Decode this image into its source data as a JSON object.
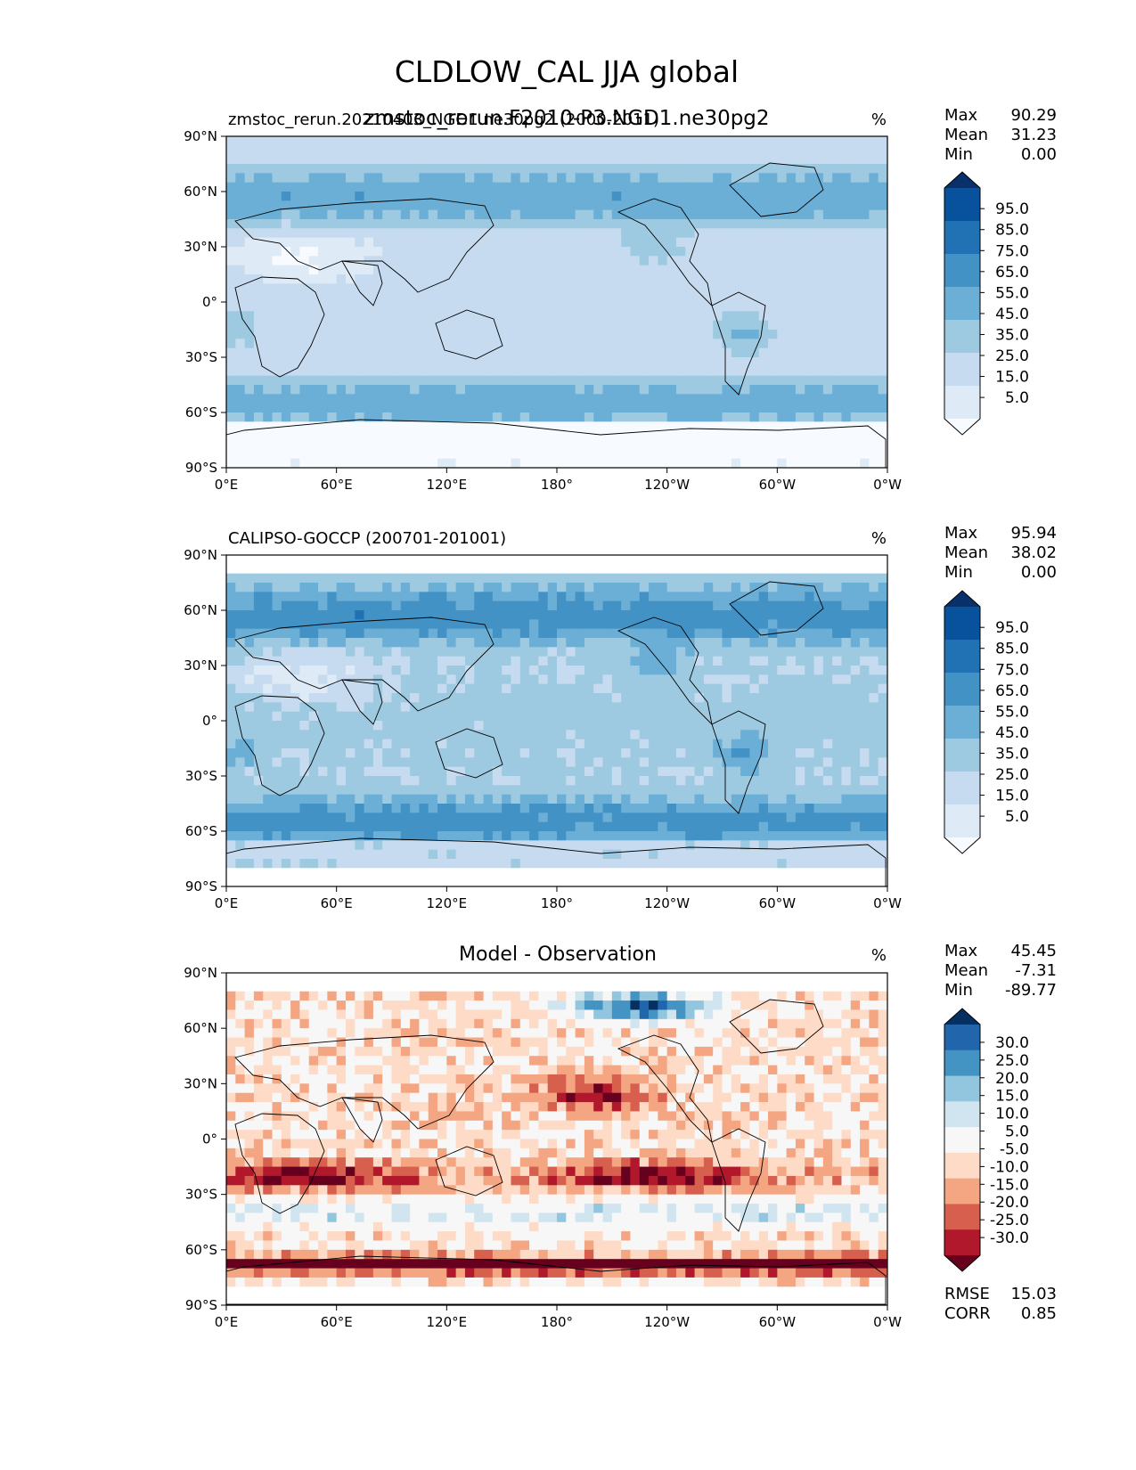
{
  "figure": {
    "title": "CLDLOW_CAL JJA global",
    "subtitle": "zmstoc_rerun.F2010-P3.NGD1.ne30pg2"
  },
  "colors": {
    "blues": [
      "#f7fbff",
      "#deebf7",
      "#c6dbef",
      "#9ecae1",
      "#6baed6",
      "#4292c6",
      "#2171b5",
      "#08519c",
      "#08306b"
    ],
    "diverging": [
      "#67001f",
      "#b2182b",
      "#d6604d",
      "#f4a582",
      "#fddbc7",
      "#f7f7f7",
      "#d1e5f0",
      "#92c5de",
      "#4393c3",
      "#2166ac",
      "#053061"
    ],
    "coastline": "#000000"
  },
  "chart_data": [
    {
      "type": "heatmap",
      "title": "zmstoc_rerun.20210403_NGD1.ne30pg2 (2000-2011)",
      "units": "%",
      "stats": {
        "max_label": "Max",
        "max": "90.29",
        "mean_label": "Mean",
        "mean": "31.23",
        "min_label": "Min",
        "min": "0.00"
      },
      "colorbar_ticks": [
        "95.0",
        "85.0",
        "75.0",
        "65.0",
        "55.0",
        "45.0",
        "35.0",
        "25.0",
        "15.0",
        "5.0"
      ],
      "x_ticks": [
        "0°E",
        "60°E",
        "120°E",
        "180°",
        "120°W",
        "60°W",
        "0°W"
      ],
      "y_ticks": [
        "90°N",
        "60°N",
        "30°N",
        "0°",
        "30°S",
        "60°S",
        "90°S"
      ],
      "value_range": [
        0,
        100
      ],
      "lat_range": [
        -90,
        90
      ]
    },
    {
      "type": "heatmap",
      "title": "CALIPSO-GOCCP (200701-201001)",
      "units": "%",
      "stats": {
        "max_label": "Max",
        "max": "95.94",
        "mean_label": "Mean",
        "mean": "38.02",
        "min_label": "Min",
        "min": "0.00"
      },
      "colorbar_ticks": [
        "95.0",
        "85.0",
        "75.0",
        "65.0",
        "55.0",
        "45.0",
        "35.0",
        "25.0",
        "15.0",
        "5.0"
      ],
      "x_ticks": [
        "0°E",
        "60°E",
        "120°E",
        "180°",
        "120°W",
        "60°W",
        "0°W"
      ],
      "y_ticks": [
        "90°N",
        "60°N",
        "30°N",
        "0°",
        "30°S",
        "60°S",
        "90°S"
      ],
      "value_range": [
        0,
        100
      ],
      "lat_range": [
        -82,
        82
      ]
    },
    {
      "type": "heatmap",
      "title": "Model - Observation",
      "units": "%",
      "stats": {
        "max_label": "Max",
        "max": "45.45",
        "mean_label": "Mean",
        "mean": "-7.31",
        "min_label": "Min",
        "min": "-89.77"
      },
      "colorbar_ticks": [
        "30.0",
        "25.0",
        "20.0",
        "15.0",
        "10.0",
        "5.0",
        "-5.0",
        "-10.0",
        "-15.0",
        "-20.0",
        "-25.0",
        "-30.0"
      ],
      "x_ticks": [
        "0°E",
        "60°E",
        "120°E",
        "180°",
        "120°W",
        "60°W",
        "0°W"
      ],
      "y_ticks": [
        "90°N",
        "60°N",
        "30°N",
        "0°",
        "30°S",
        "60°S",
        "90°S"
      ],
      "value_range": [
        -35,
        35
      ],
      "lat_range": [
        -82,
        82
      ],
      "extra_stats": {
        "rmse_label": "RMSE",
        "rmse": "15.03",
        "corr_label": "CORR",
        "corr": "0.85"
      }
    }
  ]
}
